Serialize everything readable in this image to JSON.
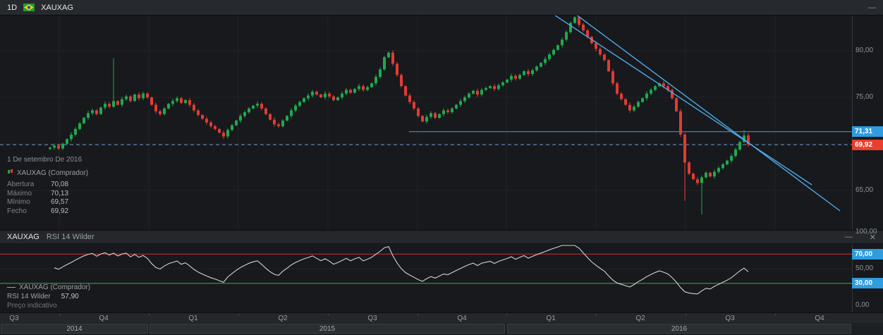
{
  "toolbar": {
    "timeframe": "1D",
    "symbol": "XAUXAG",
    "minimize_glyph": "—"
  },
  "tooltip": {
    "date": "1 De setembro De 2016",
    "series": "XAUXAG (Comprador)",
    "rows": [
      {
        "label": "Abertura",
        "value": "70,08"
      },
      {
        "label": "Máximo",
        "value": "70,13"
      },
      {
        "label": "Mínimo",
        "value": "69,57"
      },
      {
        "label": "Fecho",
        "value": "69,92"
      }
    ]
  },
  "rsi_panel": {
    "symbol": "XAUXAG",
    "indicator": "RSI 14 Wilder",
    "minimize_glyph": "—",
    "close_glyph": "✕",
    "legend": {
      "series": "XAUXAG (Comprador)",
      "indicator": "RSI 14 Wilder",
      "value": "57,90",
      "note": "Preço indicativo"
    }
  },
  "price_axis": {
    "ticks": [
      {
        "label": "80,00",
        "value": 80
      },
      {
        "label": "75,00",
        "value": 75
      },
      {
        "label": "65,00",
        "value": 65
      }
    ],
    "line_badge": {
      "label": "71,31",
      "value": 71.31
    },
    "price_badge": {
      "label": "69,92",
      "value": 69.92
    }
  },
  "rsi_axis": {
    "ticks": [
      {
        "label": "100,00",
        "value": 100
      },
      {
        "label": "50,00",
        "value": 50
      },
      {
        "label": "0,00",
        "value": 0
      }
    ],
    "badges": [
      {
        "label": "70,00",
        "value": 70
      },
      {
        "label": "30,00",
        "value": 30
      }
    ]
  },
  "time_axis": {
    "quarters": [
      {
        "label": "Q3",
        "xp": 0.0166
      },
      {
        "label": "Q4",
        "xp": 0.1217
      },
      {
        "label": "Q1",
        "xp": 0.2268
      },
      {
        "label": "Q2",
        "xp": 0.332
      },
      {
        "label": "Q3",
        "xp": 0.4371
      },
      {
        "label": "Q4",
        "xp": 0.5422
      },
      {
        "label": "Q1",
        "xp": 0.6465
      },
      {
        "label": "Q2",
        "xp": 0.7517
      },
      {
        "label": "Q3",
        "xp": 0.8568
      },
      {
        "label": "Q4",
        "xp": 0.9619
      }
    ],
    "years": [
      {
        "label": "2014",
        "x1p": 0.0,
        "x2p": 0.175
      },
      {
        "label": "2015",
        "x1p": 0.175,
        "x2p": 0.594
      },
      {
        "label": "2016",
        "x1p": 0.594,
        "x2p": 1.0
      }
    ],
    "grid_xp": [
      0.0695,
      0.1746,
      0.2798,
      0.3849,
      0.4901,
      0.5944,
      0.6995,
      0.8046,
      0.9098
    ]
  },
  "colors": {
    "up": "#1fa94e",
    "down": "#e23b34",
    "trendline": "#4fa8e8",
    "dashed_line": "#6f9ccc",
    "hline": "#3f8fd4",
    "rsi_line": "#cfd2d4",
    "overbought": "#d03030",
    "oversold": "#30b050",
    "badge_blue": "#2e9cdf",
    "badge_red": "#e8402d"
  },
  "chart_data": [
    {
      "type": "candlestick",
      "title": "XAUXAG 1D",
      "ylim": [
        60.9,
        83.9
      ],
      "grid_prices": [
        80,
        75,
        70,
        65
      ],
      "wick": 0.2,
      "closes": [
        69.6,
        69.8,
        69.5,
        70.0,
        70.5,
        71.0,
        71.6,
        72.2,
        72.8,
        73.3,
        73.6,
        73.2,
        73.9,
        74.3,
        74.0,
        74.6,
        74.2,
        74.8,
        75.1,
        74.6,
        75.3,
        74.9,
        75.4,
        75.0,
        74.2,
        73.5,
        73.2,
        73.8,
        74.3,
        74.6,
        74.9,
        74.4,
        74.7,
        74.2,
        73.6,
        73.1,
        72.7,
        72.3,
        71.9,
        71.6,
        71.2,
        70.8,
        71.5,
        72.0,
        72.5,
        73.0,
        73.4,
        73.8,
        74.1,
        74.3,
        73.8,
        73.2,
        72.6,
        72.1,
        71.9,
        72.5,
        73.0,
        73.6,
        74.1,
        74.5,
        74.9,
        75.2,
        75.6,
        75.3,
        75.0,
        75.4,
        75.1,
        74.7,
        75.0,
        75.4,
        75.8,
        75.5,
        75.9,
        76.2,
        75.8,
        76.1,
        76.5,
        77.2,
        78.0,
        79.3,
        79.8,
        78.6,
        77.4,
        76.2,
        75.2,
        74.5,
        73.8,
        73.0,
        72.4,
        72.9,
        73.3,
        72.8,
        73.2,
        73.6,
        73.4,
        73.8,
        74.2,
        74.6,
        75.0,
        75.4,
        75.7,
        75.3,
        75.8,
        76.0,
        76.2,
        75.9,
        76.3,
        76.6,
        76.9,
        77.3,
        77.0,
        77.4,
        77.8,
        77.5,
        77.9,
        78.3,
        78.7,
        79.1,
        79.6,
        80.1,
        80.6,
        81.2,
        82.0,
        83.0,
        83.6,
        82.8,
        82.2,
        81.5,
        80.8,
        80.2,
        79.6,
        79.0,
        77.8,
        76.5,
        75.4,
        74.8,
        74.2,
        73.6,
        74.0,
        74.5,
        74.9,
        75.4,
        75.8,
        76.2,
        76.5,
        76.2,
        75.8,
        74.9,
        73.5,
        71.0,
        68.0,
        66.8,
        66.2,
        65.8,
        66.4,
        66.9,
        66.5,
        67.0,
        67.4,
        67.8,
        68.2,
        68.7,
        69.4,
        70.2,
        70.9,
        69.92
      ],
      "overrides": {
        "15": {
          "high": 79.2
        },
        "150": {
          "low": 63.9
        },
        "154": {
          "low": 62.4
        },
        "164": {
          "high": 71.5
        }
      },
      "dashed_price": 69.92,
      "hline": {
        "price": 71.31,
        "x_start_p": 0.48
      },
      "trendlines": [
        {
          "x1p": 0.625,
          "p1": 85.4,
          "x2p": 0.953,
          "p2": 65.6
        },
        {
          "x1p": 0.654,
          "p1": 85.4,
          "x2p": 0.986,
          "p2": 62.8
        }
      ]
    },
    {
      "type": "line",
      "title": "RSI 14 Wilder",
      "period": 14,
      "ylim": [
        0,
        100
      ],
      "levels": {
        "overbought": 70,
        "oversold": 30,
        "mid": 50
      },
      "current": 57.9
    }
  ]
}
